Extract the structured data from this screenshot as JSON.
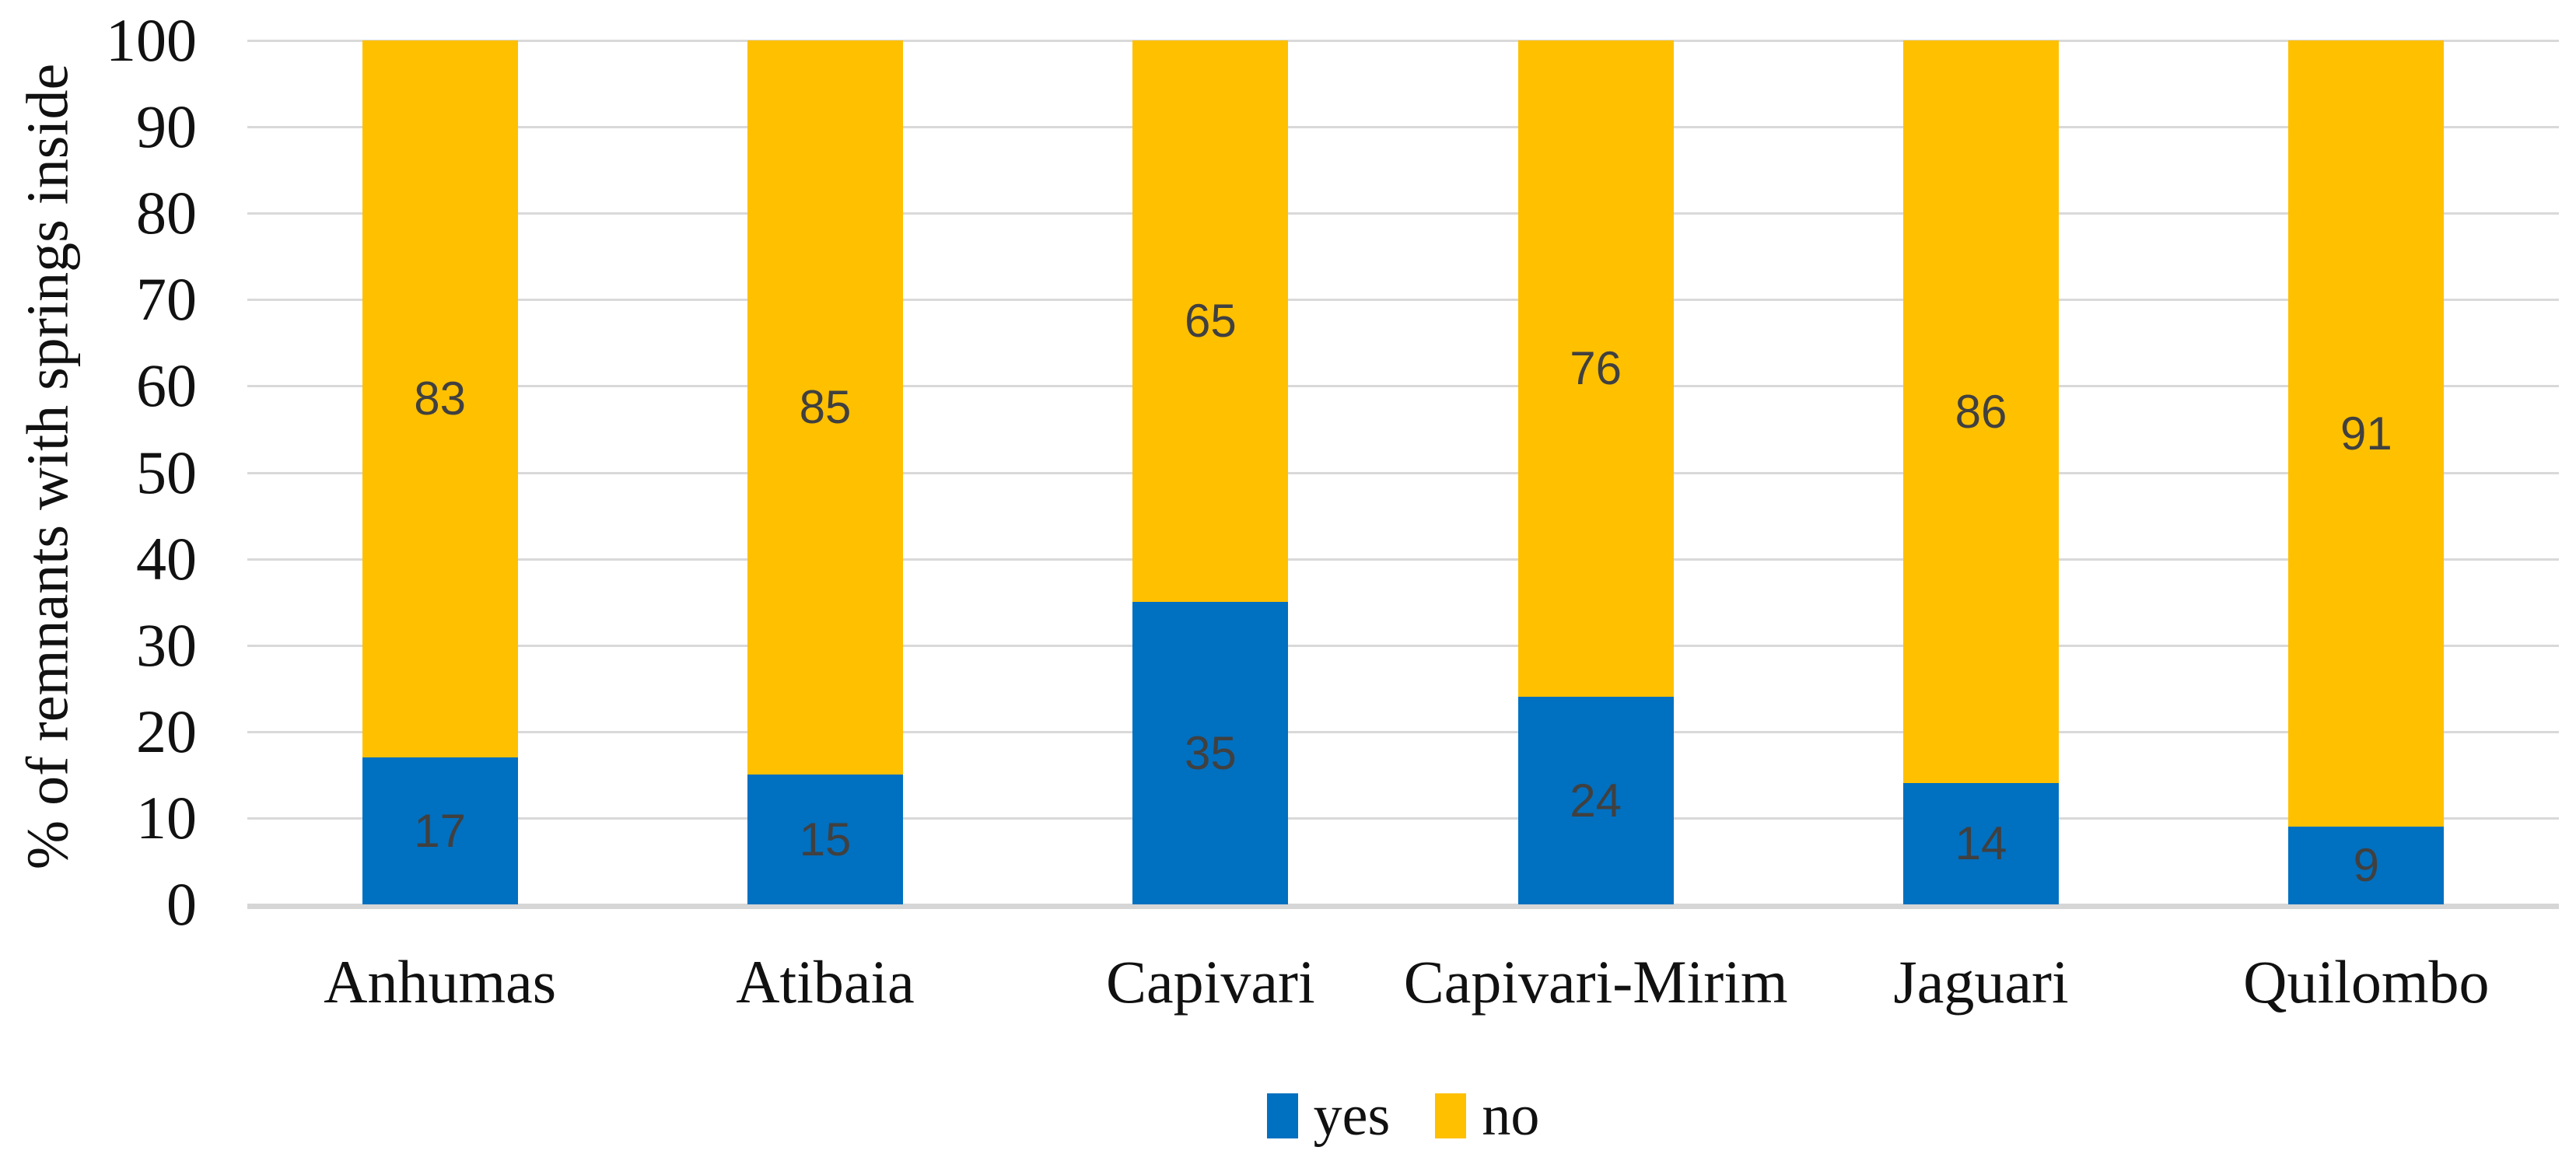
{
  "chart_data": {
    "type": "bar",
    "stacked": true,
    "title": "",
    "categories": [
      "Anhumas",
      "Atibaia",
      "Capivari",
      "Capivari-Mirim",
      "Jaguari",
      "Quilombo"
    ],
    "series": [
      {
        "name": "yes",
        "color": "#0070C0",
        "values": [
          17,
          15,
          35,
          24,
          14,
          9
        ]
      },
      {
        "name": "no",
        "color": "#FFC000",
        "values": [
          83,
          85,
          65,
          76,
          86,
          91
        ]
      }
    ],
    "xlabel": "",
    "ylabel": "% of remnants with springs inside",
    "ylim": [
      0,
      100
    ],
    "yticks": [
      0,
      10,
      20,
      30,
      40,
      50,
      60,
      70,
      80,
      90,
      100
    ],
    "grid": true,
    "gridline_color": "#D9D9D9",
    "axis_line_color": "#D6D6D6",
    "data_labels": true,
    "data_label_color": "#404040",
    "legend_position": "bottom-center"
  }
}
